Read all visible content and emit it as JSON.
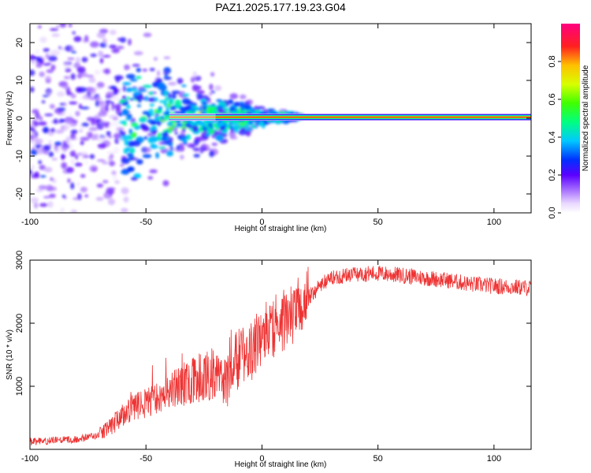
{
  "title": "PAZ1.2025.177.19.23.G04",
  "chart_data": [
    {
      "type": "heatmap",
      "xlabel": "Height of straight line (km)",
      "ylabel": "Frequency (Hz)",
      "xlim": [
        -100,
        116
      ],
      "ylim": [
        -25,
        25
      ],
      "xticks": [
        -100,
        -50,
        0,
        50,
        100
      ],
      "yticks": [
        -20,
        -10,
        0,
        10,
        20
      ],
      "colorbar": {
        "label": "Normalized spectral amplitude",
        "range": [
          0,
          1
        ],
        "ticks": [
          0.0,
          0.2,
          0.4,
          0.6,
          0.8
        ],
        "tick_labels": [
          "0.0",
          "0.2",
          "0.4",
          "0.6",
          "0.8"
        ]
      },
      "ridge": {
        "description_x_start": -40,
        "x_from": -40,
        "x_to": 116,
        "frequency": 0.3
      }
    },
    {
      "type": "line",
      "xlabel": "Height of straight line (km)",
      "ylabel": "SNR (10 * v/v)",
      "xlim": [
        -100,
        116
      ],
      "ylim": [
        0,
        3000
      ],
      "xticks": [
        -100,
        -50,
        0,
        50,
        100
      ],
      "yticks": [
        1000,
        2000,
        3000
      ],
      "color": "#ee3333",
      "series": [
        {
          "x": [
            -100,
            -90,
            -80,
            -70,
            -65,
            -60,
            -55,
            -50,
            -45,
            -40,
            -35,
            -30,
            -25,
            -20,
            -15,
            -10,
            -5,
            0,
            5,
            10,
            15,
            20,
            25,
            30,
            40,
            50,
            60,
            70,
            80,
            90,
            100,
            110,
            116
          ],
          "values": [
            120,
            140,
            160,
            230,
            350,
            550,
            650,
            750,
            800,
            900,
            1000,
            1100,
            1150,
            1200,
            1100,
            1450,
            1550,
            1800,
            1950,
            2050,
            2200,
            2400,
            2600,
            2720,
            2780,
            2790,
            2760,
            2720,
            2680,
            2620,
            2590,
            2570,
            2560
          ]
        }
      ]
    }
  ]
}
